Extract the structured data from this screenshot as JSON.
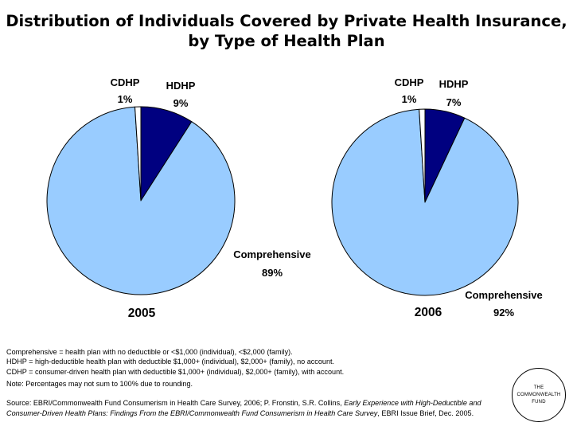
{
  "title": {
    "line1": "Distribution of Individuals Covered by Private Health Insurance,",
    "line2": "by Type of Health Plan"
  },
  "chart_data": [
    {
      "type": "pie",
      "year_label": "2005",
      "slices": [
        {
          "name": "CDHP",
          "value": 1,
          "label": "1%",
          "color": "#ffffff"
        },
        {
          "name": "HDHP",
          "value": 9,
          "label": "9%",
          "color": "#000080"
        },
        {
          "name": "Comprehensive",
          "value": 89,
          "label": "89%",
          "color": "#99ccff"
        }
      ]
    },
    {
      "type": "pie",
      "year_label": "2006",
      "slices": [
        {
          "name": "CDHP",
          "value": 1,
          "label": "1%",
          "color": "#ffffff"
        },
        {
          "name": "HDHP",
          "value": 7,
          "label": "7%",
          "color": "#000080"
        },
        {
          "name": "Comprehensive",
          "value": 92,
          "label": "92%",
          "color": "#99ccff"
        }
      ]
    }
  ],
  "definitions": {
    "comprehensive": "Comprehensive = health plan with no deductible or <$1,000 (individual), <$2,000 (family).",
    "hdhp": "HDHP = high-deductible health plan with deductible $1,000+ (individual), $2,000+ (family), no account.",
    "cdhp": "CDHP = consumer-driven health plan with deductible $1,000+ (individual), $2,000+ (family), with account."
  },
  "note": "Note: Percentages may not sum to 100% due to rounding.",
  "source": {
    "prefix": "Source: EBRI/Commonwealth Fund Consumerism in Health Care Survey, 2006; P. Fronstin, S.R. Collins, ",
    "italic": "Early Experience with High-Deductible and Consumer-Driven Health Plans: Findings From the EBRI/Commonwealth Fund Consumerism in Health Care Survey",
    "suffix": ", EBRI Issue Brief, Dec. 2005."
  },
  "logo": {
    "line1": "THE",
    "line2": "COMMONWEALTH",
    "line3": "FUND"
  }
}
